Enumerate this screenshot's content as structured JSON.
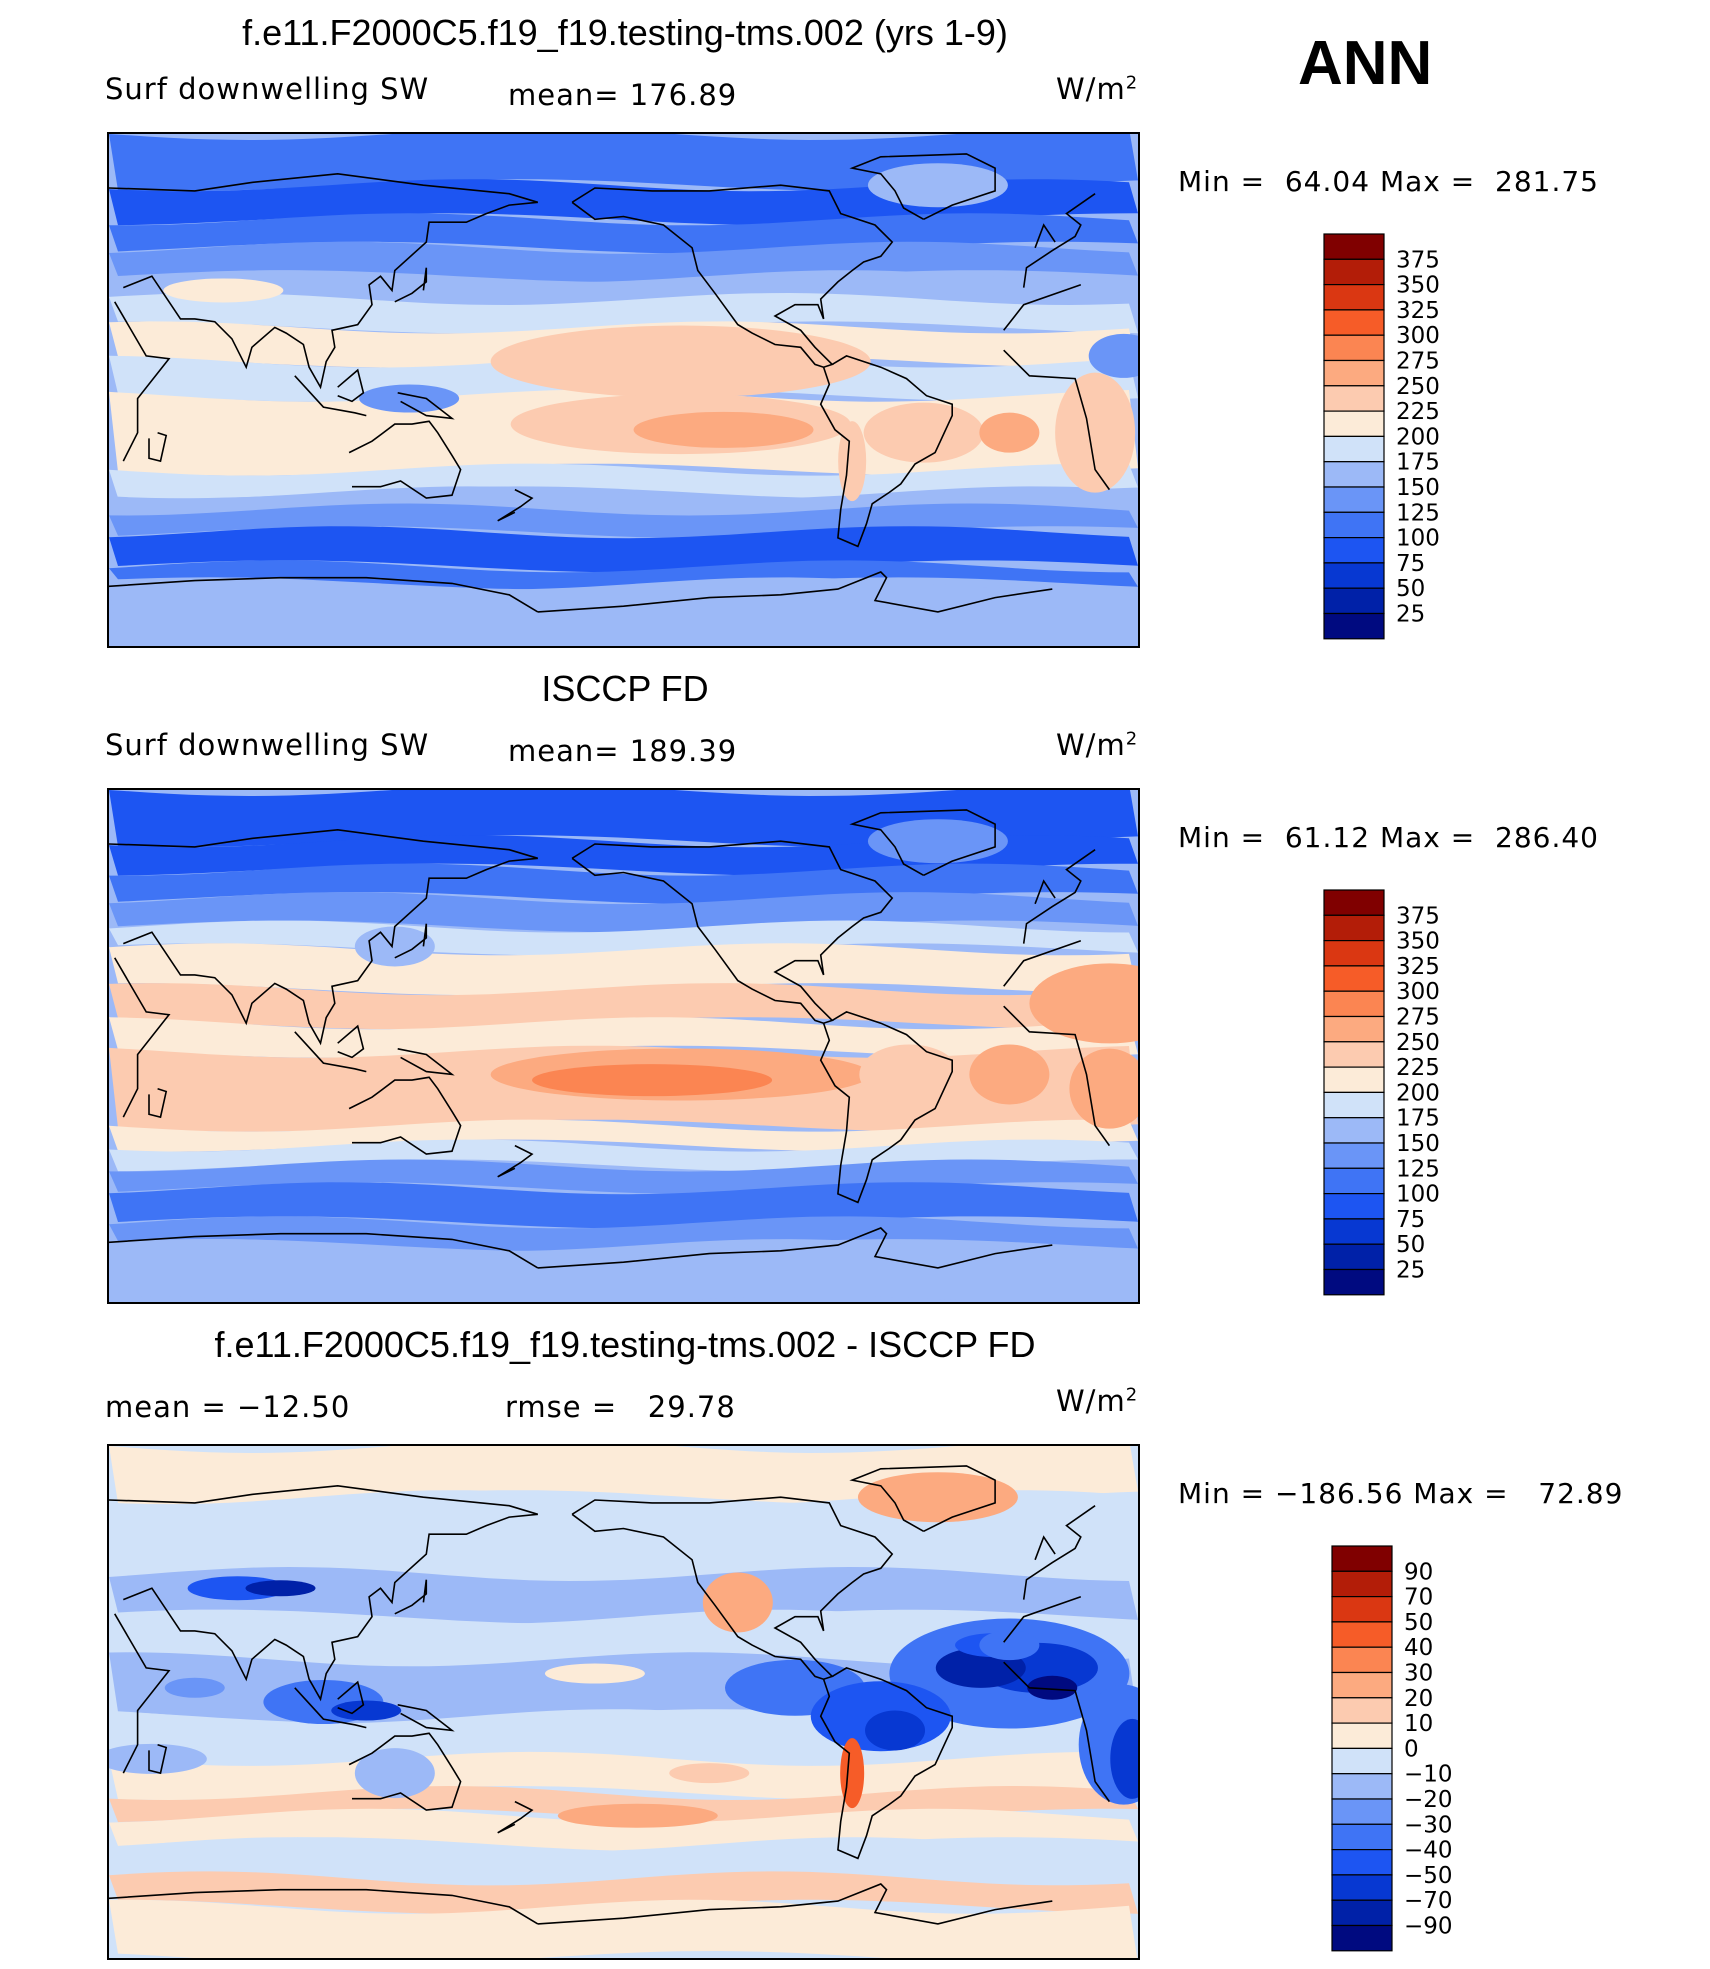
{
  "figure": {
    "season": "ANN",
    "colors": {
      "abs_scale": [
        "#000a80",
        "#0021a8",
        "#0738d2",
        "#1d55f2",
        "#3f74f5",
        "#6a95f7",
        "#9cb9f7",
        "#d0e2f9",
        "#fcebd8",
        "#fccbb0",
        "#fcaa80",
        "#fb8552",
        "#f65c28",
        "#da3712",
        "#b31d08",
        "#800000"
      ],
      "diff_scale": [
        "#000a80",
        "#0021a8",
        "#0738d2",
        "#1d55f2",
        "#3f74f5",
        "#6a95f7",
        "#9cb9f7",
        "#d0e2f9",
        "#fcebd8",
        "#fccbb0",
        "#fcaa80",
        "#fb8552",
        "#f65c28",
        "#da3712",
        "#b31d08",
        "#800000"
      ],
      "coastline": "#000000"
    }
  },
  "chart_data": [
    {
      "type": "heatmap",
      "title": "f.e11.F2000C5.f19_f19.testing-tms.002 (yrs 1-9)",
      "variable": "Surf downwelling SW",
      "stat_label": "mean=",
      "stat_value": "176.89",
      "units_base": "W/m",
      "units_exp": "2",
      "min_label": "Min =",
      "min_value": "64.04",
      "max_label": "Max =",
      "max_value": "281.75",
      "levels": [
        "375",
        "350",
        "325",
        "300",
        "275",
        "250",
        "225",
        "200",
        "175",
        "150",
        "125",
        "100",
        "75",
        "50",
        "25"
      ]
    },
    {
      "type": "heatmap",
      "title": "ISCCP FD",
      "variable": "Surf downwelling SW",
      "stat_label": "mean=",
      "stat_value": "189.39",
      "units_base": "W/m",
      "units_exp": "2",
      "min_label": "Min =",
      "min_value": "61.12",
      "max_label": "Max =",
      "max_value": "286.40",
      "levels": [
        "375",
        "350",
        "325",
        "300",
        "275",
        "250",
        "225",
        "200",
        "175",
        "150",
        "125",
        "100",
        "75",
        "50",
        "25"
      ]
    },
    {
      "type": "heatmap",
      "title": "f.e11.F2000C5.f19_f19.testing-tms.002 - ISCCP FD",
      "mean_label": "mean =",
      "mean_value": "−12.50",
      "rmse_label": "rmse =",
      "rmse_value": "29.78",
      "units_base": "W/m",
      "units_exp": "2",
      "min_label": "Min =",
      "min_value": "−186.56",
      "max_label": "Max =",
      "max_value": "72.89",
      "levels": [
        "90",
        "70",
        "50",
        "40",
        "30",
        "20",
        "10",
        "0",
        "−10",
        "−20",
        "−30",
        "−40",
        "−50",
        "−70",
        "−90"
      ]
    }
  ]
}
